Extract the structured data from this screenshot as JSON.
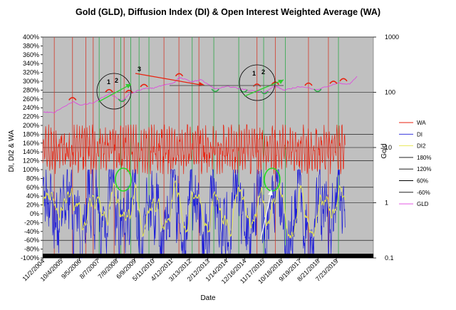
{
  "chart_data": {
    "type": "line",
    "title": "Gold (GLD), Diffusion Index (DI) & Open Interest Weighted Average (WA)",
    "xlabel": "Date",
    "ylabel_left": "DI, DI2 & WA",
    "ylabel_right": "Gold",
    "y_left_ticks": [
      "400%",
      "380%",
      "360%",
      "340%",
      "320%",
      "300%",
      "280%",
      "260%",
      "240%",
      "220%",
      "200%",
      "180%",
      "160%",
      "140%",
      "120%",
      "100%",
      "80%",
      "60%",
      "40%",
      "20%",
      "0%",
      "-20%",
      "-40%",
      "-60%",
      "-80%",
      "-100%"
    ],
    "ylim_left": [
      -1.0,
      4.0
    ],
    "y_right_ticks": [
      "1000",
      "100",
      "10",
      "1",
      "0.1"
    ],
    "ylim_right": [
      0.1,
      1000
    ],
    "y_right_scale": "log",
    "x_ticks": [
      "11/2/2004",
      "10/4/2005",
      "9/5/2006",
      "8/7/2007",
      "7/8/2008",
      "6/9/2009",
      "5/11/2010",
      "4/12/2011",
      "3/13/2012",
      "2/12/2013",
      "1/14/2014",
      "12/16/2014",
      "11/17/2015",
      "10/18/2016",
      "9/19/2017",
      "8/21/2018",
      "7/23/2019"
    ],
    "xlim": [
      "2004-11-02",
      "2021-06-01"
    ],
    "grid": "horizontal",
    "legend_position": "right",
    "plot_background": "#c0c0c0",
    "series": [
      {
        "name": "WA",
        "color": "#e8220f",
        "axis": "left"
      },
      {
        "name": "DI",
        "color": "#1c1cd8",
        "axis": "left"
      },
      {
        "name": "DI2",
        "color": "#e6e64a",
        "axis": "left"
      },
      {
        "name": "180%",
        "color": "#000000",
        "axis": "left",
        "constant": 1.8
      },
      {
        "name": "120%",
        "color": "#000000",
        "axis": "left",
        "constant": 1.2
      },
      {
        "name": "60%",
        "color": "#000000",
        "axis": "left",
        "constant": 0.6
      },
      {
        "name": "-60%",
        "color": "#000000",
        "axis": "left",
        "constant": -0.6
      },
      {
        "name": "GLD",
        "color": "#e040e0",
        "axis": "right",
        "points": [
          [
            "2004-11-18",
            44
          ],
          [
            "2005-06-01",
            43
          ],
          [
            "2006-05-01",
            68
          ],
          [
            "2006-10-01",
            58
          ],
          [
            "2007-06-01",
            66
          ],
          [
            "2008-03-01",
            95
          ],
          [
            "2008-10-24",
            70
          ],
          [
            "2009-03-01",
            92
          ],
          [
            "2009-12-01",
            118
          ],
          [
            "2010-06-01",
            120
          ],
          [
            "2010-12-01",
            135
          ],
          [
            "2011-06-01",
            148
          ],
          [
            "2011-09-06",
            185
          ],
          [
            "2012-05-01",
            155
          ],
          [
            "2012-10-01",
            170
          ],
          [
            "2013-06-28",
            115
          ],
          [
            "2014-03-01",
            128
          ],
          [
            "2014-12-01",
            112
          ],
          [
            "2015-12-17",
            101
          ],
          [
            "2016-07-01",
            130
          ],
          [
            "2016-12-15",
            108
          ],
          [
            "2017-09-01",
            127
          ],
          [
            "2018-08-16",
            113
          ],
          [
            "2019-09-04",
            147
          ],
          [
            "2020-03-19",
            139
          ],
          [
            "2020-08-06",
            194
          ]
        ]
      }
    ],
    "vertical_markers": {
      "red_dates": [
        "2005-06-01",
        "2006-05-01",
        "2007-01-01",
        "2007-05-15",
        "2008-06-01",
        "2008-12-01",
        "2010-12-01",
        "2011-09-01",
        "2012-09-01",
        "2015-08-01",
        "2016-07-01",
        "2018-03-01",
        "2019-03-01"
      ],
      "green_dates": [
        "2007-09-01",
        "2008-10-01",
        "2009-04-01",
        "2009-09-01",
        "2010-03-01",
        "2012-05-01",
        "2013-06-01",
        "2014-09-01",
        "2015-12-01",
        "2017-01-01",
        "2019-09-01"
      ]
    },
    "annotations": {
      "labels": [
        "1",
        "2",
        "3",
        "1",
        "2"
      ]
    }
  }
}
